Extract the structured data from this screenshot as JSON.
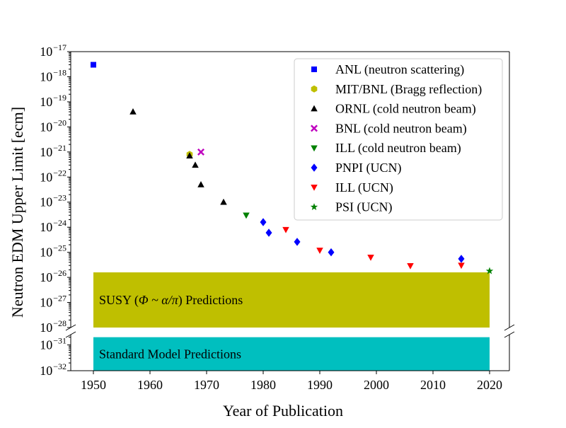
{
  "chart_data": {
    "type": "scatter",
    "xlabel": "Year of Publication",
    "ylabel": "Neutron EDM Upper Limit [ecm]",
    "xlim": [
      1946,
      2023.5
    ],
    "x_ticks": [
      1950,
      1960,
      1970,
      1980,
      1990,
      2000,
      2010,
      2020
    ],
    "y_scale": "log",
    "y_axis_broken": true,
    "upper_ylim_exp": [
      -28,
      -17
    ],
    "lower_ylim_exp": [
      -32,
      -30.6
    ],
    "upper_tick_exps": [
      -17,
      -18,
      -19,
      -20,
      -21,
      -22,
      -23,
      -24,
      -25,
      -26,
      -27,
      -28
    ],
    "lower_tick_exps": [
      -31,
      -32
    ],
    "tick_base": "10",
    "legend_position": "top-right",
    "grid": false,
    "bands": [
      {
        "label_prefix": "SUSY (",
        "label_math": "Φ ~ α/π",
        "label_suffix": ") Predictions",
        "color": "#bfbf00",
        "x_range": [
          1950,
          2020
        ],
        "y_exp_range": [
          -28,
          -25.8
        ]
      },
      {
        "label_prefix": "Standard Model Predictions",
        "label_math": "",
        "label_suffix": "",
        "color": "#00bfbf",
        "x_range": [
          1950,
          2020
        ],
        "y_exp_range": [
          -32,
          -30.7
        ]
      }
    ],
    "series": [
      {
        "name": "ANL (neutron scattering)",
        "marker": "square",
        "color": "#0000ff",
        "points": [
          [
            1950,
            3e-18
          ]
        ]
      },
      {
        "name": "MIT/BNL (Bragg reflection)",
        "marker": "hexagon",
        "color": "#bfbf00",
        "points": [
          [
            1967,
            8e-22
          ]
        ]
      },
      {
        "name": "ORNL (cold neutron beam)",
        "marker": "triangle-up",
        "color": "#000000",
        "points": [
          [
            1957,
            4e-20
          ],
          [
            1967,
            7e-22
          ],
          [
            1968,
            3e-22
          ],
          [
            1969,
            5e-23
          ],
          [
            1973,
            1e-23
          ]
        ]
      },
      {
        "name": "BNL (cold neutron beam)",
        "marker": "x",
        "color": "#bf00bf",
        "points": [
          [
            1969,
            1e-21
          ]
        ]
      },
      {
        "name": "ILL (cold neutron beam)",
        "marker": "triangle-down",
        "color": "#008000",
        "points": [
          [
            1977,
            3e-24
          ]
        ]
      },
      {
        "name": "PNPI (UCN)",
        "marker": "diamond",
        "color": "#0000ff",
        "points": [
          [
            1980,
            1.6e-24
          ],
          [
            1981,
            6e-25
          ],
          [
            1986,
            2.6e-25
          ],
          [
            1992,
            1e-25
          ],
          [
            2015,
            5.5e-26
          ]
        ]
      },
      {
        "name": "ILL (UCN)",
        "marker": "triangle-down",
        "color": "#ff0000",
        "points": [
          [
            1984,
            8e-25
          ],
          [
            1990,
            1.2e-25
          ],
          [
            1999,
            6.3e-26
          ],
          [
            2006,
            2.9e-26
          ],
          [
            2015,
            3e-26
          ]
        ]
      },
      {
        "name": "PSI (UCN)",
        "marker": "star",
        "color": "#008000",
        "points": [
          [
            2020,
            1.8e-26
          ]
        ]
      }
    ]
  }
}
